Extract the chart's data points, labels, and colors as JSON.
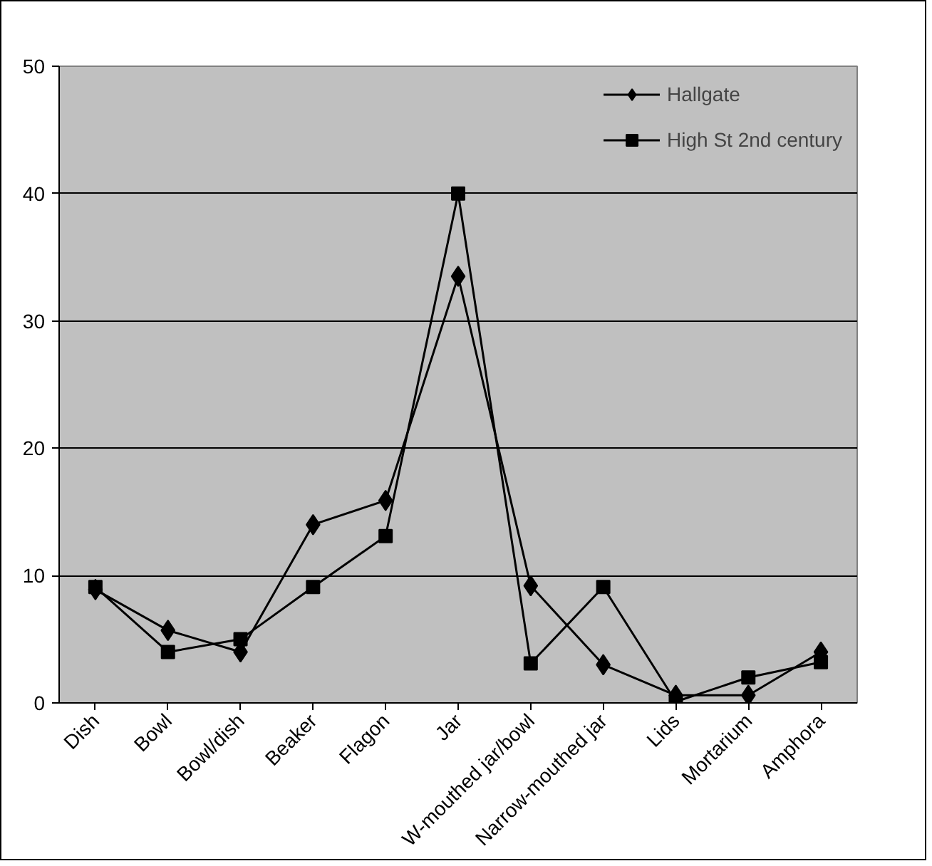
{
  "chart_data": {
    "type": "line",
    "categories": [
      "Dish",
      "Bowl",
      "Bowl/dish",
      "Beaker",
      "Flagon",
      "Jar",
      "W-mouthed jar/bowl",
      "Narrow-mouthed jar",
      "Lids",
      "Mortarium",
      "Amphora"
    ],
    "series": [
      {
        "name": "Hallgate",
        "color": "#000000",
        "marker": "diamond",
        "values": [
          8.9,
          5.7,
          4.0,
          14.0,
          15.9,
          33.5,
          9.2,
          3.0,
          0.6,
          0.6,
          4.0
        ]
      },
      {
        "name": "High St 2nd century",
        "color": "#000000",
        "marker": "square",
        "values": [
          9.1,
          4.0,
          5.0,
          9.1,
          13.1,
          40.0,
          3.1,
          9.1,
          0.1,
          2.0,
          3.2
        ]
      }
    ],
    "ylim": [
      0,
      50
    ],
    "yticks": [
      0,
      10,
      20,
      30,
      40,
      50
    ],
    "grid": "y",
    "legend": "top right",
    "line_style": "solid"
  }
}
